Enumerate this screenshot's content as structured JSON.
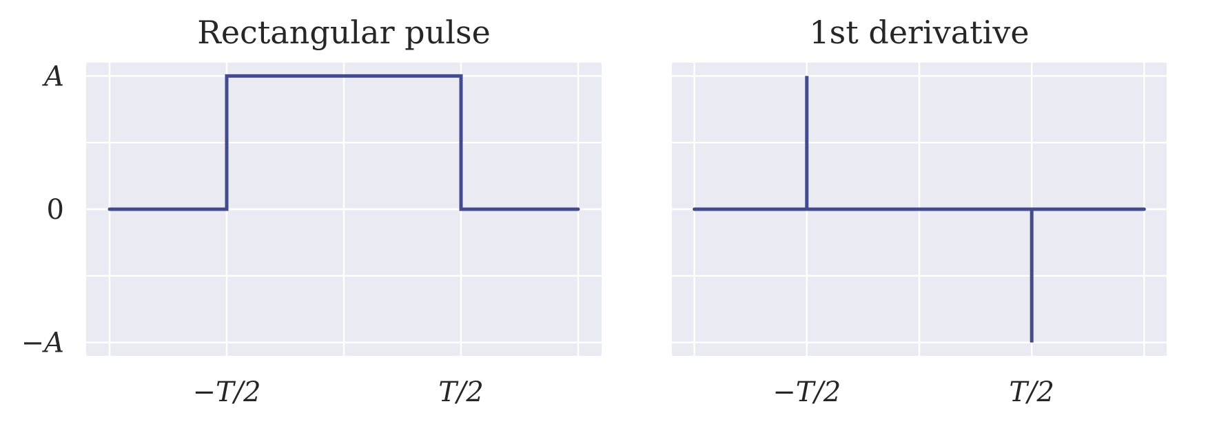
{
  "figure": {
    "background": "#ffffff",
    "panel_color": "#EAEAF2",
    "grid_color": "#ffffff",
    "line_color": "#434B8C"
  },
  "chart_data": [
    {
      "type": "line",
      "title": "Rectangular pulse",
      "xlabel": "",
      "ylabel": "",
      "x_ticks": [
        -2,
        -1,
        0,
        1,
        2
      ],
      "x_tick_labels": [
        "",
        "−T/2",
        "",
        "T/2",
        ""
      ],
      "y_ticks": [
        -1,
        -0.5,
        0,
        0.5,
        1
      ],
      "y_tick_labels": [
        "−A",
        "",
        "0",
        "",
        "A"
      ],
      "xlim": [
        -2.2,
        2.2
      ],
      "ylim": [
        -1.1,
        1.1
      ],
      "grid": true,
      "series": [
        {
          "x": [
            -2,
            -1,
            -1,
            1,
            1,
            2
          ],
          "y": [
            0,
            0,
            1,
            1,
            0,
            0
          ]
        }
      ]
    },
    {
      "type": "line",
      "title": "1st derivative",
      "xlabel": "",
      "ylabel": "",
      "x_ticks": [
        -2,
        -1,
        0,
        1,
        2
      ],
      "x_tick_labels": [
        "",
        "−T/2",
        "",
        "T/2",
        ""
      ],
      "y_ticks": [
        -1,
        -0.5,
        0,
        0.5,
        1
      ],
      "y_tick_labels": [
        "",
        "",
        "",
        "",
        ""
      ],
      "xlim": [
        -2.2,
        2.2
      ],
      "ylim": [
        -1.1,
        1.1
      ],
      "grid": true,
      "series": [
        {
          "x": [
            -2,
            -1,
            -1,
            -1,
            1,
            1,
            1,
            2
          ],
          "y": [
            0,
            0,
            1,
            0,
            0,
            -1,
            0,
            0
          ]
        }
      ]
    }
  ]
}
